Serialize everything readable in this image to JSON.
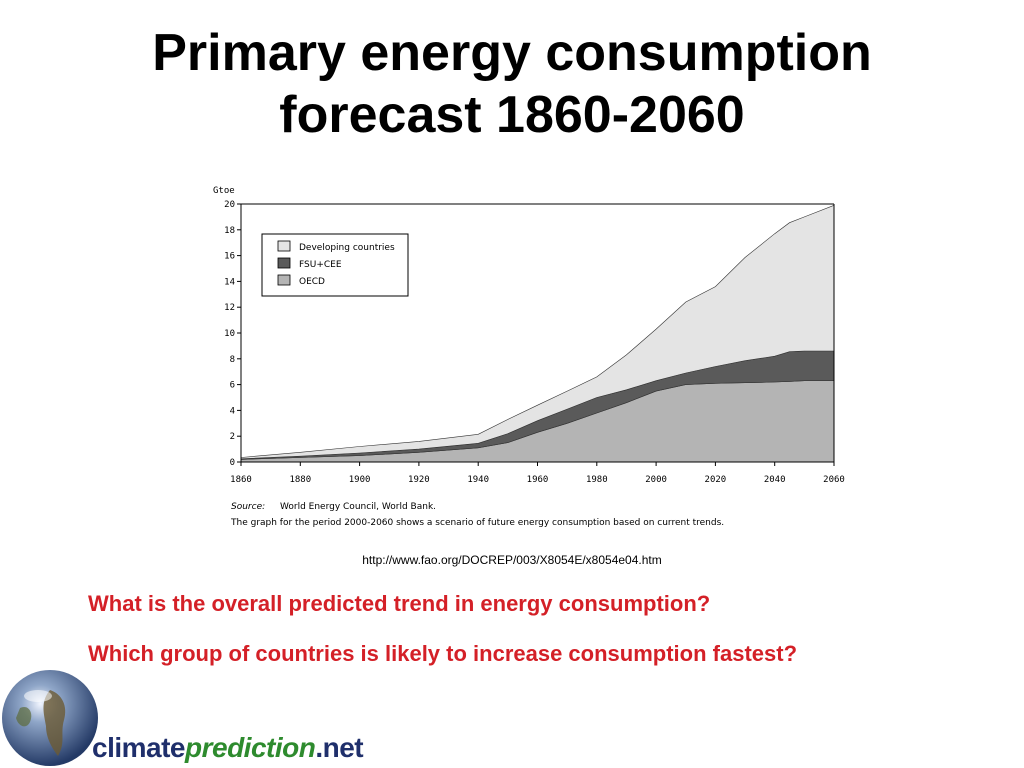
{
  "slide": {
    "title_line1": "Primary energy consumption",
    "title_line2": "forecast 1860-2060",
    "source_url": "http://www.fao.org/DOCREP/003/X8054E/x8054e04.htm",
    "question1": "What is the overall predicted trend in energy consumption?",
    "question2": "Which group of countries is likely to increase consumption fastest?",
    "question_color": "#d42027"
  },
  "logo": {
    "part1": "climate",
    "part2": "prediction",
    "part3": ".net",
    "icon": "globe-icon"
  },
  "chart_data": {
    "type": "area",
    "stacked": true,
    "ylabel": "Gtoe",
    "xlim": [
      1860,
      2060
    ],
    "ylim": [
      0,
      20
    ],
    "x_ticks": [
      1860,
      1880,
      1900,
      1920,
      1940,
      1960,
      1980,
      2000,
      2020,
      2040,
      2060
    ],
    "y_ticks": [
      0,
      2,
      4,
      6,
      8,
      10,
      12,
      14,
      16,
      18,
      20
    ],
    "grid": false,
    "legend_position": "top-left",
    "x": [
      1860,
      1880,
      1900,
      1920,
      1940,
      1950,
      1960,
      1970,
      1980,
      1990,
      2000,
      2010,
      2020,
      2030,
      2040,
      2045,
      2050,
      2060
    ],
    "series": [
      {
        "name": "OECD",
        "color": "#b4b4b4",
        "values": [
          0.2,
          0.35,
          0.5,
          0.75,
          1.1,
          1.5,
          2.3,
          3.0,
          3.8,
          4.6,
          5.5,
          6.0,
          6.1,
          6.15,
          6.2,
          6.25,
          6.3,
          6.3
        ]
      },
      {
        "name": "FSU+CEE",
        "color": "#5a5a5a",
        "values": [
          0.05,
          0.1,
          0.2,
          0.25,
          0.35,
          0.7,
          0.9,
          1.1,
          1.2,
          1.0,
          0.8,
          0.9,
          1.3,
          1.7,
          2.0,
          2.3,
          2.3,
          2.3
        ]
      },
      {
        "name": "Developing countries",
        "color": "#e4e4e4",
        "values": [
          0.1,
          0.3,
          0.5,
          0.6,
          0.7,
          1.1,
          1.2,
          1.4,
          1.6,
          2.7,
          4.0,
          5.5,
          6.2,
          8.0,
          9.5,
          10.0,
          10.4,
          11.3
        ]
      }
    ],
    "notes": {
      "source_label": "Source:",
      "source_text": "World Energy Council, World Bank.",
      "caption": "The graph for the period 2000-2060 shows a scenario of future energy consumption based on current trends."
    }
  }
}
